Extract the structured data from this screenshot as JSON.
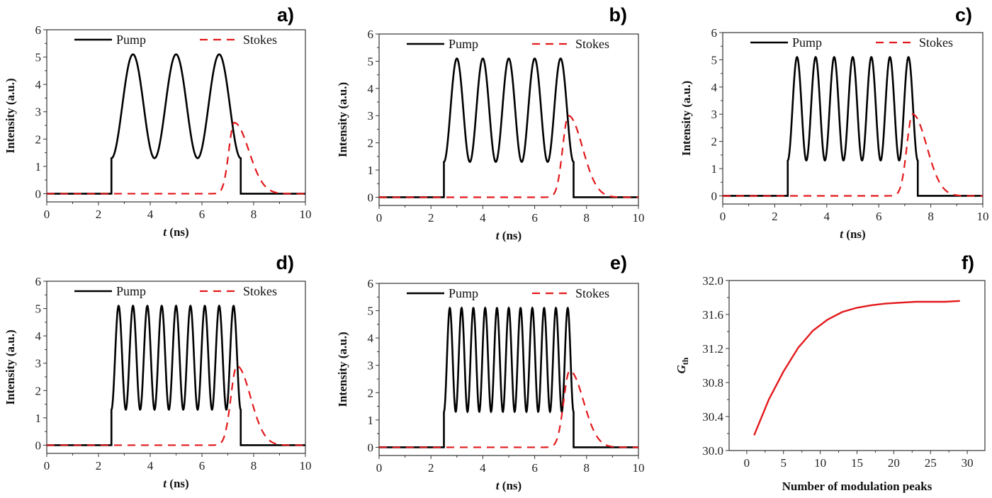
{
  "chart_data": [
    {
      "panel": "a)",
      "type": "line",
      "xlabel_italic": "t",
      "xlabel_rest": " (ns)",
      "ylabel": "Intensity (a.u.)",
      "xlim": [
        0,
        10
      ],
      "ylim": [
        -0.3,
        6
      ],
      "xticks": [
        0,
        2,
        4,
        6,
        8,
        10
      ],
      "yticks": [
        0,
        1,
        2,
        3,
        4,
        5,
        6
      ],
      "legend": "top",
      "modulation_peaks": 3,
      "series": [
        {
          "name": "Pump",
          "color": "#000000",
          "style": "solid",
          "onset": 2.5,
          "end": 7.5,
          "min": 1.3,
          "max": 5.1
        },
        {
          "name": "Stokes",
          "color": "#e3191c",
          "style": "dashed",
          "peak": 2.6,
          "peak_t": 7.25,
          "rise_start": 6.3,
          "decay_end": 9.0
        }
      ]
    },
    {
      "panel": "b)",
      "type": "line",
      "xlabel_italic": "t",
      "xlabel_rest": " (ns)",
      "ylabel": "Intensity (a.u.)",
      "xlim": [
        0,
        10
      ],
      "ylim": [
        -0.3,
        6
      ],
      "xticks": [
        0,
        2,
        4,
        6,
        8,
        10
      ],
      "yticks": [
        0,
        1,
        2,
        3,
        4,
        5,
        6
      ],
      "legend": "top",
      "modulation_peaks": 5,
      "series": [
        {
          "name": "Pump",
          "color": "#000000",
          "style": "solid",
          "onset": 2.5,
          "end": 7.5,
          "min": 1.3,
          "max": 5.1
        },
        {
          "name": "Stokes",
          "color": "#e3191c",
          "style": "dashed",
          "peak": 3.0,
          "peak_t": 7.3,
          "rise_start": 6.3,
          "decay_end": 9.0
        }
      ]
    },
    {
      "panel": "c)",
      "type": "line",
      "xlabel_italic": "t",
      "xlabel_rest": " (ns)",
      "ylabel": "Intensity (a.u.)",
      "xlim": [
        0,
        10
      ],
      "ylim": [
        -0.3,
        6
      ],
      "xticks": [
        0,
        2,
        4,
        6,
        8,
        10
      ],
      "yticks": [
        0,
        1,
        2,
        3,
        4,
        5,
        6
      ],
      "legend": "top",
      "modulation_peaks": 7,
      "series": [
        {
          "name": "Pump",
          "color": "#000000",
          "style": "solid",
          "onset": 2.5,
          "end": 7.5,
          "min": 1.3,
          "max": 5.1
        },
        {
          "name": "Stokes",
          "color": "#e3191c",
          "style": "dashed",
          "peak": 3.0,
          "peak_t": 7.3,
          "rise_start": 6.3,
          "decay_end": 9.0
        }
      ]
    },
    {
      "panel": "d)",
      "type": "line",
      "xlabel_italic": "t",
      "xlabel_rest": " (ns)",
      "ylabel": "Intensity (a.u.)",
      "xlim": [
        0,
        10
      ],
      "ylim": [
        -0.3,
        6
      ],
      "xticks": [
        0,
        2,
        4,
        6,
        8,
        10
      ],
      "yticks": [
        0,
        1,
        2,
        3,
        4,
        5,
        6
      ],
      "legend": "top",
      "modulation_peaks": 9,
      "series": [
        {
          "name": "Pump",
          "color": "#000000",
          "style": "solid",
          "onset": 2.5,
          "end": 7.5,
          "min": 1.3,
          "max": 5.1
        },
        {
          "name": "Stokes",
          "color": "#e3191c",
          "style": "dashed",
          "peak": 2.9,
          "peak_t": 7.35,
          "rise_start": 6.3,
          "decay_end": 9.0
        }
      ]
    },
    {
      "panel": "e)",
      "type": "line",
      "xlabel_italic": "t",
      "xlabel_rest": " (ns)",
      "ylabel": "Intensity (a.u.)",
      "xlim": [
        0,
        10
      ],
      "ylim": [
        -0.3,
        6
      ],
      "xticks": [
        0,
        2,
        4,
        6,
        8,
        10
      ],
      "yticks": [
        0,
        1,
        2,
        3,
        4,
        5,
        6
      ],
      "legend": "top",
      "modulation_peaks": 11,
      "series": [
        {
          "name": "Pump",
          "color": "#000000",
          "style": "solid",
          "onset": 2.5,
          "end": 7.5,
          "min": 1.3,
          "max": 5.1
        },
        {
          "name": "Stokes",
          "color": "#e3191c",
          "style": "dashed",
          "peak": 2.8,
          "peak_t": 7.35,
          "rise_start": 6.3,
          "decay_end": 9.0
        }
      ]
    },
    {
      "panel": "f)",
      "type": "line",
      "xlabel": "Number of modulation peaks",
      "ylabel_italic": "G",
      "ylabel_sub": "th",
      "xlim": [
        -2.4,
        32.4
      ],
      "ylim": [
        30.0,
        32.0
      ],
      "xticks": [
        0,
        5,
        10,
        15,
        20,
        25,
        30
      ],
      "yticks": [
        "30.0",
        "30.4",
        "30.8",
        "31.2",
        "31.6",
        "32.0"
      ],
      "series": [
        {
          "color": "#e3191c",
          "style": "solid",
          "x": [
            1,
            3,
            5,
            7,
            9,
            11,
            13,
            15,
            17,
            19,
            21,
            23,
            25,
            27,
            29
          ],
          "y": [
            30.18,
            30.6,
            30.93,
            31.21,
            31.41,
            31.54,
            31.63,
            31.68,
            31.71,
            31.73,
            31.74,
            31.75,
            31.75,
            31.75,
            31.76
          ]
        }
      ]
    }
  ]
}
